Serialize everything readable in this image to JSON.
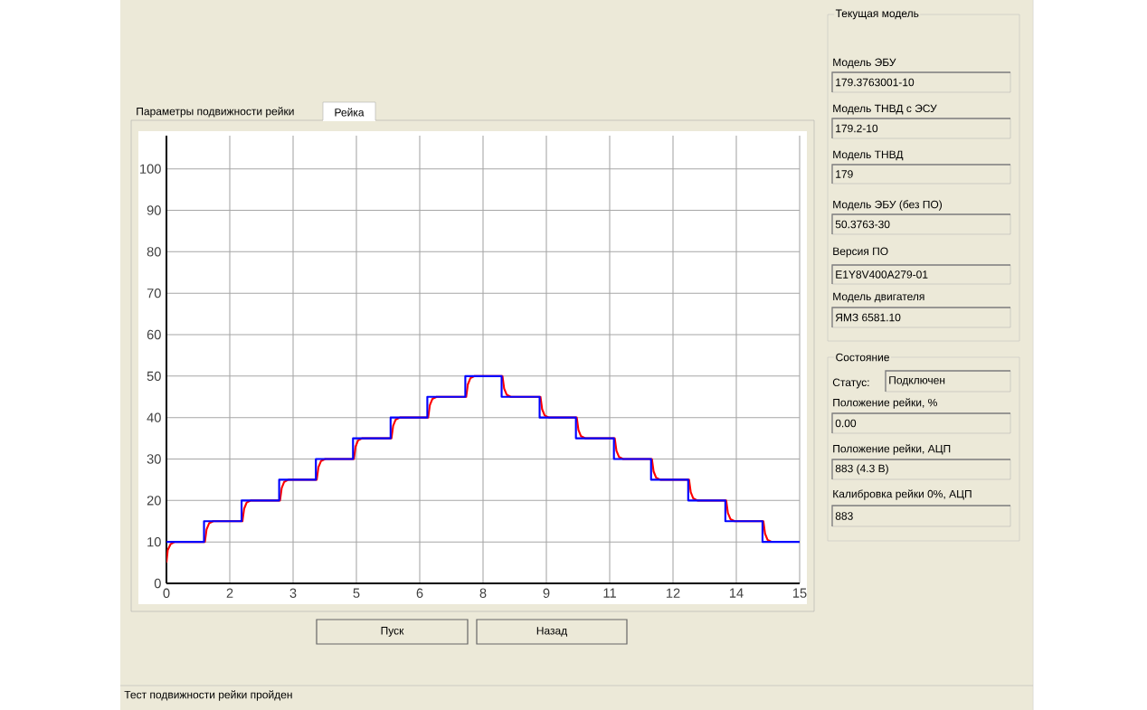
{
  "chart_data": {
    "type": "line",
    "xlim": [
      0,
      15
    ],
    "ylim": [
      0,
      108
    ],
    "xticks": [
      0,
      {
        "value": 1.5,
        "label": "2"
      },
      3,
      {
        "value": 4.5,
        "label": "5"
      },
      6,
      {
        "value": 7.5,
        "label": "8"
      },
      9,
      {
        "value": 10.5,
        "label": "11"
      },
      12,
      {
        "value": 13.5,
        "label": "14"
      },
      15
    ],
    "yticks": [
      0,
      10,
      20,
      30,
      40,
      50,
      60,
      70,
      80,
      90,
      100
    ],
    "grid": true,
    "series": [
      {
        "type": "line",
        "color": "#ff0000",
        "x": [
          0,
          0.03,
          0.1,
          0.2,
          0.91,
          0.95,
          1.01,
          1.11,
          1.8,
          1.84,
          1.9,
          2.0,
          2.69,
          2.73,
          2.79,
          2.89,
          3.56,
          3.6,
          3.66,
          3.76,
          4.44,
          4.48,
          4.54,
          4.64,
          5.33,
          5.37,
          5.43,
          5.53,
          6.2,
          6.24,
          6.3,
          6.4,
          7.1,
          7.14,
          7.2,
          7.3,
          7.96,
          8.0,
          8.06,
          8.16,
          8.86,
          8.9,
          8.96,
          9.06,
          9.72,
          9.76,
          9.82,
          9.92,
          10.62,
          10.66,
          10.72,
          10.82,
          11.5,
          11.54,
          11.6,
          11.7,
          12.38,
          12.42,
          12.48,
          12.58,
          13.26,
          13.3,
          13.36,
          13.46,
          14.14,
          14.18,
          14.24,
          14.34
        ],
        "values": [
          5,
          8,
          9.5,
          10,
          10,
          13,
          14.5,
          15,
          15,
          18,
          19.5,
          20,
          20,
          23,
          24.5,
          25,
          25,
          28,
          29.5,
          30,
          30,
          33,
          34.5,
          35,
          35,
          38,
          39.5,
          40,
          40,
          43,
          44.5,
          45,
          45,
          48,
          49.5,
          50,
          50,
          47,
          45.5,
          45,
          45,
          42,
          40.5,
          40,
          40,
          37,
          35.5,
          35,
          35,
          32,
          30.5,
          30,
          30,
          27,
          25.5,
          25,
          25,
          22,
          20.5,
          20,
          20,
          17,
          15.5,
          15,
          15,
          12,
          10.5,
          10
        ]
      },
      {
        "type": "step",
        "color": "#0000ff",
        "x": [
          0,
          0.89,
          1.78,
          2.67,
          3.54,
          4.42,
          5.31,
          6.18,
          7.08,
          7.94,
          8.84,
          9.7,
          10.6,
          11.48,
          12.36,
          13.24,
          14.12,
          15
        ],
        "values": [
          10,
          15,
          20,
          25,
          30,
          35,
          40,
          45,
          50,
          45,
          40,
          35,
          30,
          25,
          20,
          15,
          10,
          10
        ]
      }
    ],
    "annotations": [
      "Параметры подвижности рейки",
      "Рейка",
      "Пуск",
      "Назад",
      "Тест подвижности рейки пройден",
      "Текущая модель",
      "Модель ЭБУ",
      "179.3763001-10",
      "Модель ТНВД с ЭСУ",
      "179.2-10",
      "Модель ТНВД",
      "179",
      "Модель ЭБУ (без ПО)",
      "50.3763-30",
      "Версия ПО",
      "E1Y8V400A279-01",
      "Модель двигателя",
      "ЯМЗ 6581.10",
      "Состояние",
      "Статус:",
      "Подключен",
      "Положение рейки, %",
      "0.00",
      "Положение рейки, АЦП",
      "883 (4.3 В)",
      "Калибровка рейки 0%, АЦП",
      "883"
    ]
  }
}
